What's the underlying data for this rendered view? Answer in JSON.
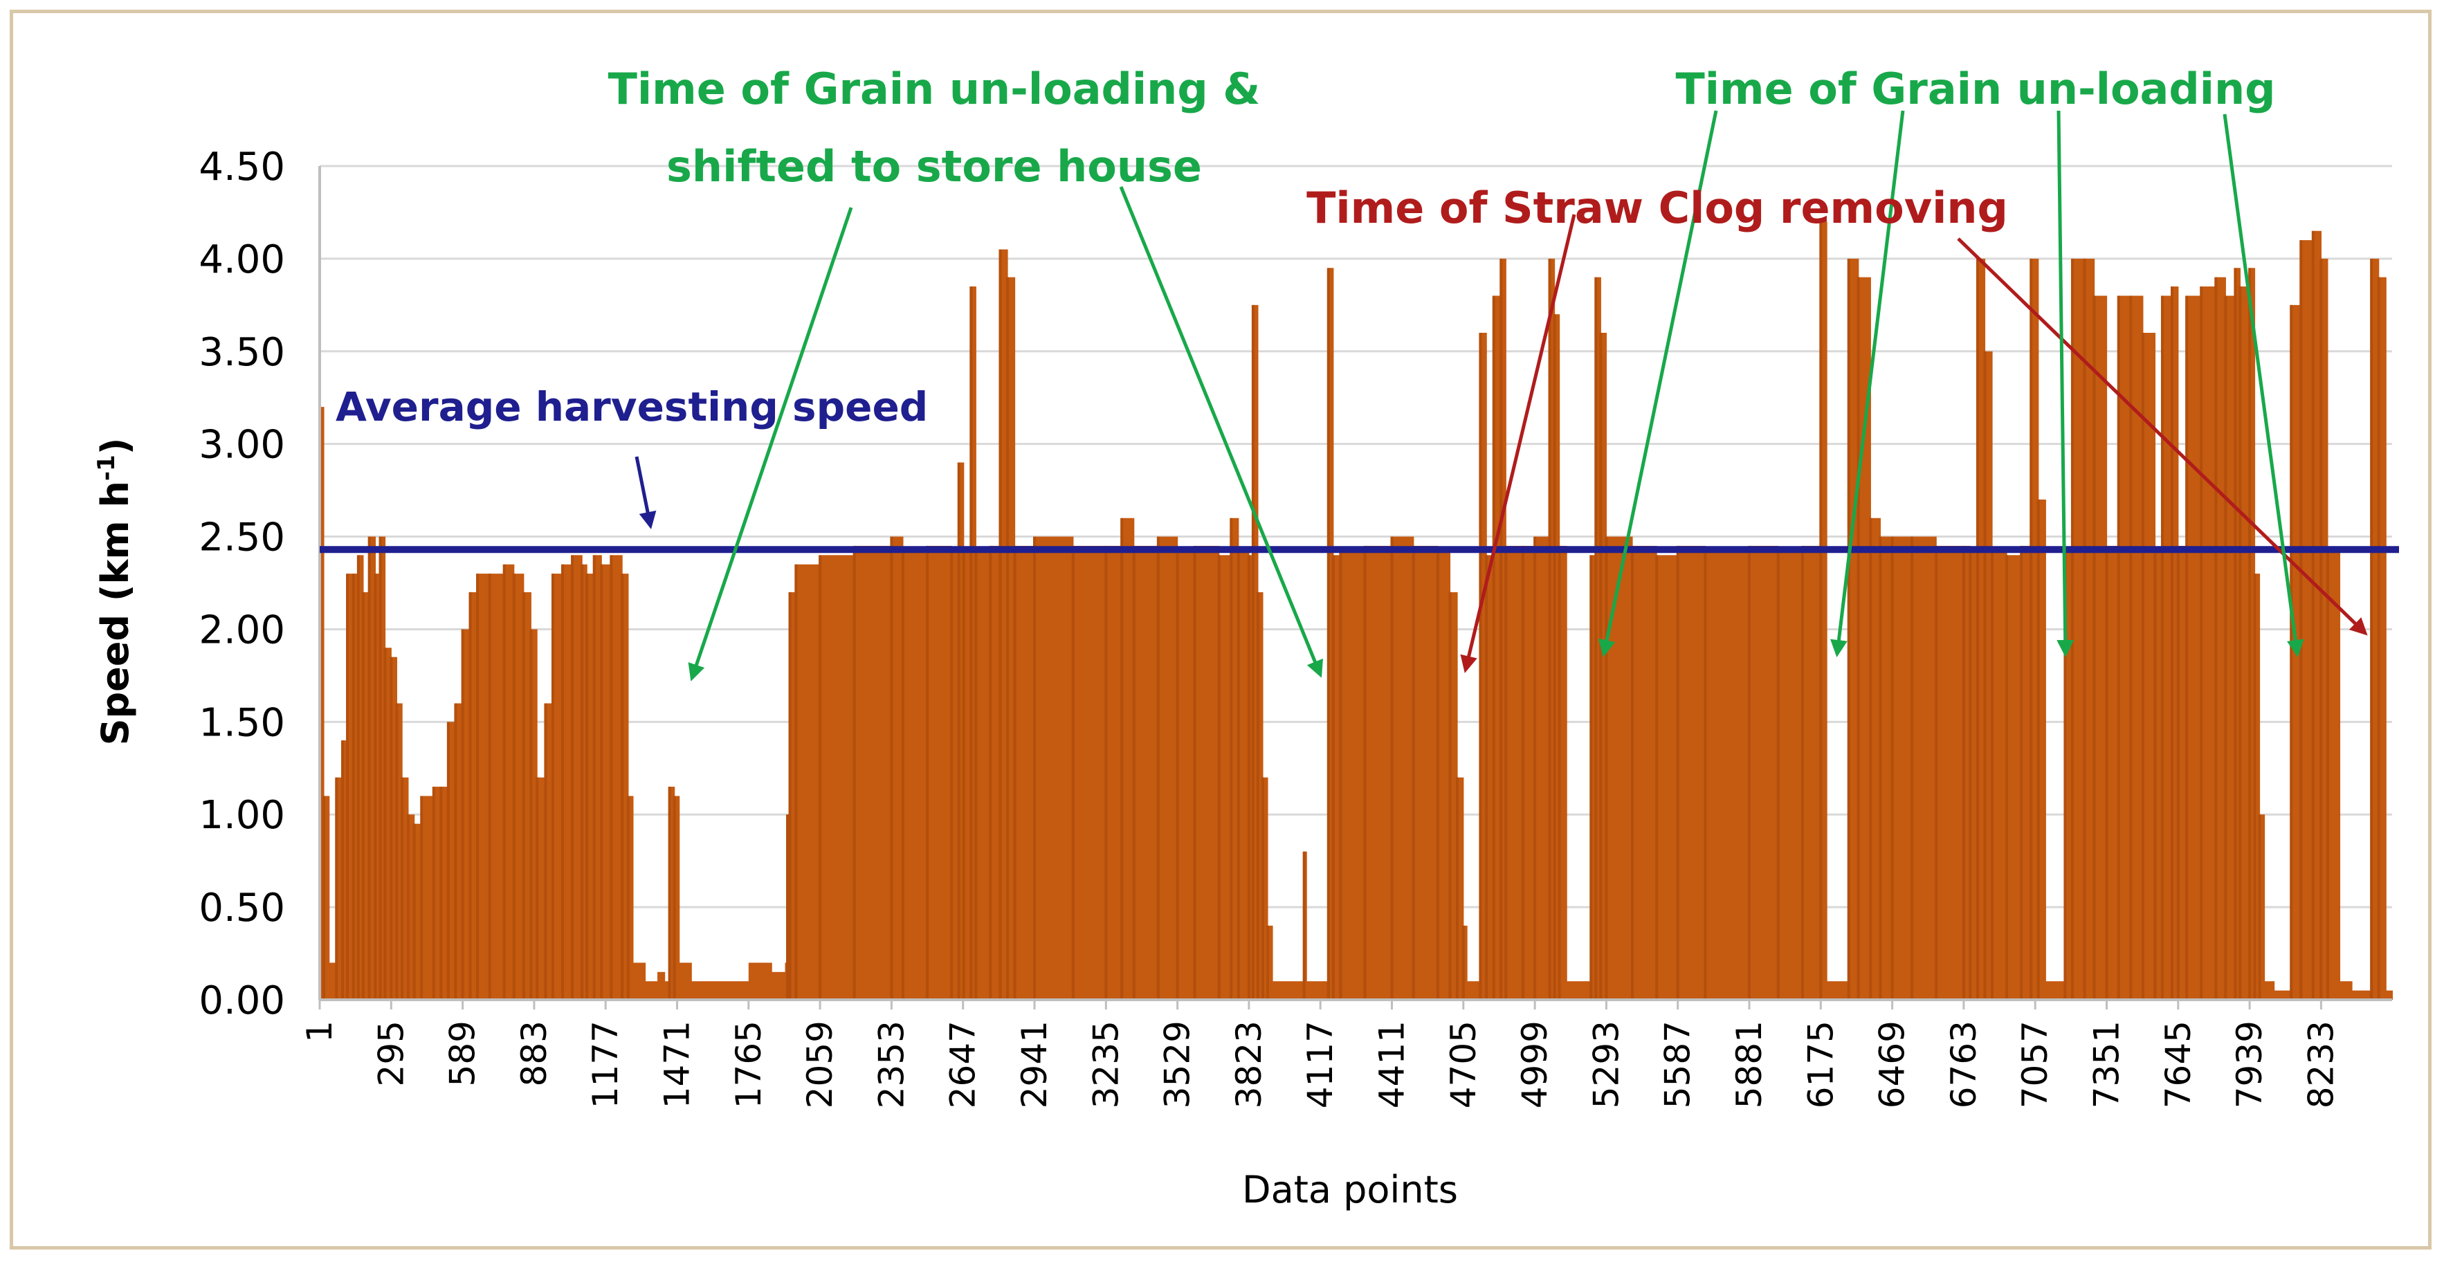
{
  "chart_data": {
    "type": "bar",
    "title": "",
    "xlabel": "Data points",
    "ylabel_main": "Speed (km h",
    "ylabel_sup": "-1",
    "ylabel_close": ")",
    "ylim": [
      0,
      4.5
    ],
    "xlim": [
      1,
      8525
    ],
    "yticks": [
      "0.00",
      "0.50",
      "1.00",
      "1.50",
      "2.00",
      "2.50",
      "3.00",
      "3.50",
      "4.00",
      "4.50"
    ],
    "xticks": [
      "1",
      "295",
      "589",
      "883",
      "1177",
      "1471",
      "1765",
      "2059",
      "2353",
      "2647",
      "2941",
      "3235",
      "3529",
      "3823",
      "4117",
      "4411",
      "4705",
      "4999",
      "5293",
      "5587",
      "5881",
      "6175",
      "6469",
      "6763",
      "7057",
      "7351",
      "7645",
      "7939",
      "8233"
    ],
    "grid": true,
    "average_speed": 2.43,
    "series": [
      {
        "name": "Speed",
        "color": "#c55a11",
        "points": [
          [
            1,
            3.2
          ],
          [
            18,
            1.1
          ],
          [
            40,
            0.2
          ],
          [
            70,
            1.2
          ],
          [
            95,
            1.4
          ],
          [
            115,
            2.3
          ],
          [
            140,
            2.3
          ],
          [
            160,
            2.4
          ],
          [
            180,
            2.2
          ],
          [
            205,
            2.5
          ],
          [
            230,
            2.3
          ],
          [
            250,
            2.5
          ],
          [
            270,
            1.9
          ],
          [
            295,
            1.85
          ],
          [
            318,
            1.6
          ],
          [
            340,
            1.2
          ],
          [
            365,
            1.0
          ],
          [
            390,
            0.95
          ],
          [
            420,
            1.1
          ],
          [
            470,
            1.15
          ],
          [
            500,
            1.15
          ],
          [
            530,
            1.5
          ],
          [
            560,
            1.6
          ],
          [
            589,
            2.0
          ],
          [
            620,
            2.2
          ],
          [
            650,
            2.3
          ],
          [
            700,
            2.3
          ],
          [
            760,
            2.35
          ],
          [
            800,
            2.3
          ],
          [
            840,
            2.2
          ],
          [
            870,
            2.0
          ],
          [
            895,
            1.2
          ],
          [
            930,
            1.6
          ],
          [
            960,
            2.3
          ],
          [
            1000,
            2.35
          ],
          [
            1040,
            2.4
          ],
          [
            1080,
            2.35
          ],
          [
            1100,
            2.3
          ],
          [
            1130,
            2.4
          ],
          [
            1160,
            2.35
          ],
          [
            1200,
            2.4
          ],
          [
            1245,
            2.3
          ],
          [
            1270,
            1.1
          ],
          [
            1290,
            0.2
          ],
          [
            1340,
            0.1
          ],
          [
            1390,
            0.15
          ],
          [
            1420,
            0.1
          ],
          [
            1440,
            1.15
          ],
          [
            1460,
            1.1
          ],
          [
            1480,
            0.2
          ],
          [
            1530,
            0.1
          ],
          [
            1580,
            0.1
          ],
          [
            1650,
            0.1
          ],
          [
            1700,
            0.1
          ],
          [
            1765,
            0.2
          ],
          [
            1820,
            0.2
          ],
          [
            1860,
            0.15
          ],
          [
            1900,
            0.15
          ],
          [
            1915,
            0.2
          ],
          [
            1925,
            1.0
          ],
          [
            1935,
            2.2
          ],
          [
            1960,
            2.35
          ],
          [
            2059,
            2.4
          ],
          [
            2200,
            2.45
          ],
          [
            2353,
            2.5
          ],
          [
            2400,
            2.42
          ],
          [
            2500,
            2.45
          ],
          [
            2600,
            2.42
          ],
          [
            2630,
            2.9
          ],
          [
            2650,
            2.42
          ],
          [
            2680,
            3.85
          ],
          [
            2700,
            2.42
          ],
          [
            2760,
            2.45
          ],
          [
            2800,
            4.05
          ],
          [
            2830,
            3.9
          ],
          [
            2860,
            2.45
          ],
          [
            2941,
            2.5
          ],
          [
            3100,
            2.45
          ],
          [
            3235,
            2.45
          ],
          [
            3300,
            2.6
          ],
          [
            3350,
            2.45
          ],
          [
            3450,
            2.5
          ],
          [
            3529,
            2.42
          ],
          [
            3600,
            2.45
          ],
          [
            3700,
            2.4
          ],
          [
            3750,
            2.6
          ],
          [
            3780,
            2.42
          ],
          [
            3823,
            2.4
          ],
          [
            3840,
            3.75
          ],
          [
            3860,
            2.2
          ],
          [
            3880,
            1.2
          ],
          [
            3900,
            0.4
          ],
          [
            3920,
            0.1
          ],
          [
            3960,
            0.1
          ],
          [
            4000,
            0.1
          ],
          [
            4050,
            0.8
          ],
          [
            4060,
            0.1
          ],
          [
            4110,
            0.1
          ],
          [
            4130,
            0.1
          ],
          [
            4150,
            3.95
          ],
          [
            4170,
            2.4
          ],
          [
            4200,
            2.42
          ],
          [
            4300,
            2.45
          ],
          [
            4411,
            2.5
          ],
          [
            4500,
            2.45
          ],
          [
            4600,
            2.42
          ],
          [
            4650,
            2.2
          ],
          [
            4680,
            1.2
          ],
          [
            4705,
            0.4
          ],
          [
            4720,
            0.1
          ],
          [
            4760,
            0.1
          ],
          [
            4775,
            3.6
          ],
          [
            4800,
            2.4
          ],
          [
            4830,
            3.8
          ],
          [
            4860,
            4.0
          ],
          [
            4880,
            2.45
          ],
          [
            4950,
            2.45
          ],
          [
            4999,
            2.5
          ],
          [
            5060,
            4.0
          ],
          [
            5080,
            3.7
          ],
          [
            5100,
            2.45
          ],
          [
            5130,
            0.1
          ],
          [
            5180,
            0.1
          ],
          [
            5200,
            0.1
          ],
          [
            5230,
            2.4
          ],
          [
            5250,
            3.9
          ],
          [
            5270,
            3.6
          ],
          [
            5293,
            2.5
          ],
          [
            5400,
            2.45
          ],
          [
            5500,
            2.4
          ],
          [
            5587,
            2.45
          ],
          [
            5700,
            2.42
          ],
          [
            5881,
            2.45
          ],
          [
            6000,
            2.42
          ],
          [
            6100,
            2.45
          ],
          [
            6175,
            4.2
          ],
          [
            6200,
            0.1
          ],
          [
            6260,
            0.1
          ],
          [
            6290,
            4.0
          ],
          [
            6330,
            3.9
          ],
          [
            6380,
            2.6
          ],
          [
            6420,
            2.5
          ],
          [
            6469,
            2.5
          ],
          [
            6550,
            2.5
          ],
          [
            6650,
            2.45
          ],
          [
            6763,
            2.45
          ],
          [
            6790,
            2.42
          ],
          [
            6820,
            4.0
          ],
          [
            6850,
            3.5
          ],
          [
            6880,
            2.42
          ],
          [
            6940,
            2.4
          ],
          [
            7000,
            2.45
          ],
          [
            7040,
            4.0
          ],
          [
            7070,
            2.7
          ],
          [
            7100,
            0.1
          ],
          [
            7130,
            0.1
          ],
          [
            7180,
            2.42
          ],
          [
            7210,
            4.0
          ],
          [
            7260,
            4.0
          ],
          [
            7300,
            3.8
          ],
          [
            7351,
            2.45
          ],
          [
            7400,
            3.8
          ],
          [
            7450,
            3.8
          ],
          [
            7500,
            3.6
          ],
          [
            7550,
            2.42
          ],
          [
            7580,
            3.8
          ],
          [
            7620,
            3.85
          ],
          [
            7645,
            2.45
          ],
          [
            7680,
            3.8
          ],
          [
            7740,
            3.85
          ],
          [
            7800,
            3.9
          ],
          [
            7840,
            3.8
          ],
          [
            7880,
            3.95
          ],
          [
            7900,
            3.85
          ],
          [
            7939,
            3.95
          ],
          [
            7960,
            2.3
          ],
          [
            7980,
            1.0
          ],
          [
            8000,
            0.1
          ],
          [
            8040,
            0.05
          ],
          [
            8090,
            0.05
          ],
          [
            8110,
            3.75
          ],
          [
            8150,
            4.1
          ],
          [
            8200,
            4.15
          ],
          [
            8233,
            4.0
          ],
          [
            8260,
            2.42
          ],
          [
            8310,
            0.1
          ],
          [
            8360,
            0.05
          ],
          [
            8400,
            0.05
          ],
          [
            8440,
            4.0
          ],
          [
            8470,
            3.9
          ],
          [
            8500,
            0.05
          ],
          [
            8525,
            0.05
          ]
        ]
      }
    ],
    "annotations": {
      "avg_label": "Average harvesting speed",
      "grain_shift_line1": "Time of Grain un-loading  &",
      "grain_shift_line2": "shifted to store house",
      "straw_label": "Time of Straw Clog removing",
      "grain_label": "Time of Grain un-loading"
    },
    "colors": {
      "bar": "#c55a11",
      "avg_line": "#1f1f8f",
      "green_annotation": "#18a84a",
      "red_annotation": "#b01c1c",
      "grid": "#d9d9d9",
      "axis": "#bfbfbf"
    }
  }
}
